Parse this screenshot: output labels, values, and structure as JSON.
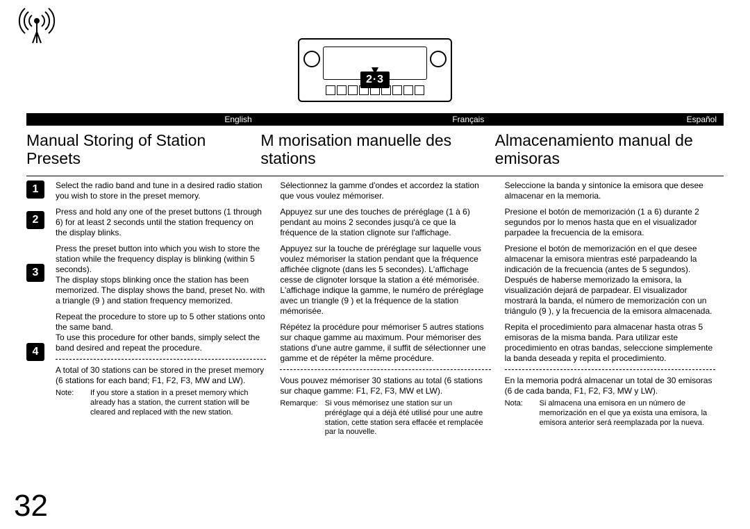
{
  "page_number": "32",
  "device_label": "2·3",
  "languages": [
    "English",
    "Français",
    "Español"
  ],
  "columns": [
    {
      "title": "Manual Storing of Station Presets",
      "steps": [
        "Select the radio band and tune in a desired radio station you wish to store in the preset memory.",
        "Press and hold any one of the preset buttons (1 through 6) for at least 2 seconds until the station frequency on the display blinks.",
        "Press the preset button into which you wish to store the station while the frequency display is blinking (within 5 seconds).\nThe display stops blinking once the station has been memorized. The display shows the band, preset No. with a triangle (9 ) and station frequency memorized.",
        "Repeat the procedure to store up to 5 other stations onto the same band.\nTo use this procedure for other bands, simply select the band desired and repeat the procedure."
      ],
      "total": "A total of 30 stations can be stored in the preset memory (6 stations for each band; F1, F2, F3, MW and LW).",
      "note_label": "Note:",
      "note": "If you store a station in a preset memory which already has a station, the current station will be cleared and replaced with the new station."
    },
    {
      "title": "M morisation manuelle des stations",
      "steps": [
        "Sélectionnez la gamme d'ondes et accordez la station que vous voulez mémoriser.",
        "Appuyez sur une des touches de préréglage (1 à 6) pendant au moins 2 secondes jusqu'à ce que la fréquence de la station clignote sur l'affichage.",
        "Appuyez sur la touche de préréglage sur laquelle vous voulez mémoriser la station pendant que la fréquence affichée clignote (dans les 5 secondes). L'affichage cesse de clignoter lorsque la station a été mémorisée. L'affichage indique la gamme, le numéro de préréglage avec un triangle (9 ) et la fréquence de la station mémorisée.",
        "Répétez la procédure pour mémoriser 5 autres stations sur chaque gamme au maximum. Pour mémoriser des stations d'une autre gamme, il suffit de sélectionner une gamme et de répéter la même procédure."
      ],
      "total": "Vous pouvez mémoriser 30 stations au total (6 stations sur chaque gamme: F1, F2, F3, MW et LW).",
      "note_label": "Remarque:",
      "note": "Si vous mémorisez une station sur un préréglage qui a déjà été utilisé pour une autre station, cette station sera effacée et remplacée par la nouvelle."
    },
    {
      "title": "Almacenamiento manual de emisoras",
      "steps": [
        "Seleccione la banda y sintonice la emisora que desee almacenar en la memoria.",
        "Presione el botón de memorización (1 a 6) durante 2 segundos por lo menos hasta que en el visualizador parpadee la frecuencia de la emisora.",
        "Presione el botón de memorización en el que desee almacenar la emisora mientras esté parpadeando la indicación de la frecuencia (antes de 5 segundos). Después de haberse memorizado la emisora, la visualización dejará de parpadear. El visualizador mostrará la banda, el número de memorización con un triángulo (9 ), y la frecuencia de la emisora almacenada.",
        "Repita el procedimiento para almacenar hasta otras 5 emisoras de la misma banda. Para utilizar este procedimiento en otras bandas, seleccione simplemente la banda deseada y repita el procedimiento."
      ],
      "total": "En la memoria podrá almacenar un total de 30 emisoras (6 de cada banda, F1, F2, F3, MW y LW).",
      "note_label": "Nota:",
      "note": "Si almacena una emisora en un número de memorización en el que ya exista una emisora, la emisora anterior será reemplazada por la nueva."
    }
  ],
  "step_numbers": [
    "1",
    "2",
    "3",
    "4"
  ],
  "badge_offsets": [
    0,
    44,
    120,
    234
  ],
  "colors": {
    "bg": "#ffffff",
    "fg": "#000000"
  }
}
